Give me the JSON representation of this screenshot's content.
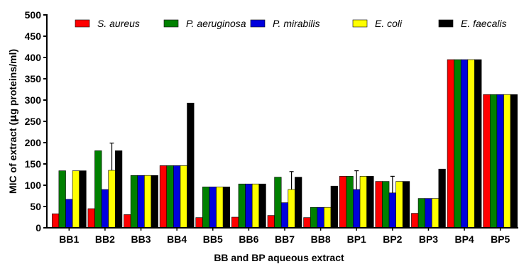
{
  "chart_data": {
    "type": "bar",
    "xlabel": "BB and BP aqueous extract",
    "ylabel_parts": [
      "MIC of extract (",
      "µ",
      "g proteins/ml)"
    ],
    "ylim": [
      0,
      500
    ],
    "yticks": [
      0,
      50,
      100,
      150,
      200,
      250,
      300,
      350,
      400,
      450,
      500
    ],
    "grid": false,
    "legend_position": "top",
    "categories": [
      "BB1",
      "BB2",
      "BB3",
      "BB4",
      "BB5",
      "BB6",
      "BB7",
      "BB8",
      "BP1",
      "BP2",
      "BP3",
      "BP4",
      "BP5"
    ],
    "series": [
      {
        "name": "S. aureus",
        "color": "#ff0000",
        "values": [
          33,
          45,
          31,
          146,
          24,
          25,
          29,
          24,
          121,
          109,
          34,
          395,
          313
        ],
        "errors": [
          0,
          0,
          0,
          0,
          0,
          0,
          0,
          0,
          0,
          0,
          0,
          0,
          0
        ]
      },
      {
        "name": "P. aeruginosa",
        "color": "#008000",
        "values": [
          134,
          181,
          123,
          146,
          96,
          103,
          119,
          48,
          121,
          109,
          69,
          395,
          313
        ],
        "errors": [
          0,
          0,
          0,
          0,
          0,
          0,
          0,
          0,
          0,
          0,
          0,
          0,
          0
        ]
      },
      {
        "name": "P. mirabilis",
        "color": "#0000dd",
        "values": [
          67,
          90,
          123,
          146,
          96,
          103,
          59,
          48,
          90,
          82,
          69,
          395,
          313
        ],
        "errors": [
          0,
          0,
          0,
          0,
          0,
          0,
          0,
          0,
          44,
          39,
          0,
          0,
          0
        ]
      },
      {
        "name": "E. coli",
        "color": "#ffff00",
        "values": [
          134,
          135,
          123,
          146,
          96,
          103,
          90,
          48,
          121,
          109,
          69,
          395,
          313
        ],
        "errors": [
          0,
          64,
          0,
          0,
          0,
          0,
          42,
          0,
          0,
          0,
          0,
          0,
          0
        ]
      },
      {
        "name": "E. faecalis",
        "color": "#000000",
        "values": [
          134,
          181,
          123,
          293,
          96,
          103,
          119,
          98,
          121,
          109,
          138,
          395,
          313
        ],
        "errors": [
          0,
          0,
          0,
          0,
          0,
          0,
          0,
          0,
          0,
          0,
          0,
          0,
          0
        ]
      }
    ]
  }
}
